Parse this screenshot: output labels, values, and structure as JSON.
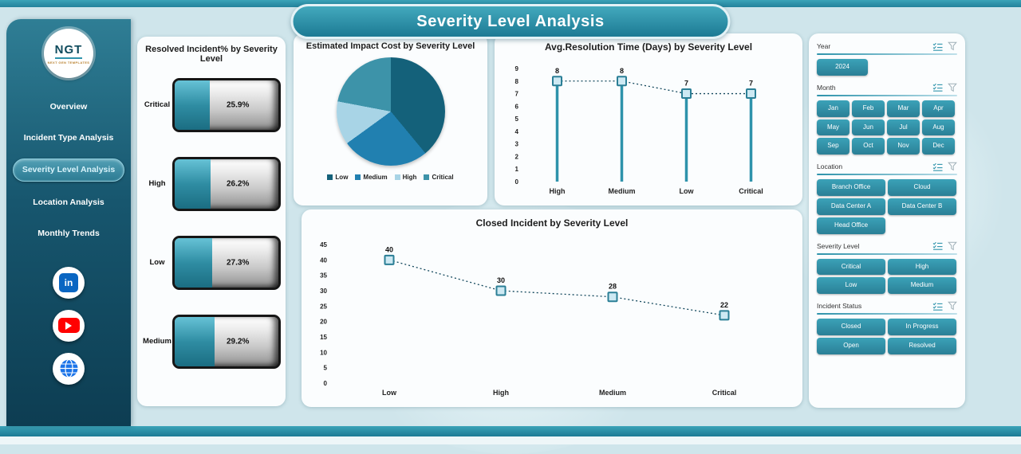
{
  "page": {
    "title": "Severity Level  Analysis"
  },
  "theme": {
    "accent": "#2e93ab",
    "accent_dark": "#1d7a94",
    "sidebar_top": "#2f7e95",
    "sidebar_bottom": "#0d3d52",
    "marker_fill": "#cde9f3",
    "marker_stroke": "#2b7f96",
    "line_color": "#12475c"
  },
  "sidebar": {
    "logo": {
      "abbr": "NGT",
      "subtitle": "NEXT GEN TEMPLATES"
    },
    "items": [
      {
        "label": "Overview",
        "active": false
      },
      {
        "label": "Incident Type Analysis",
        "active": false
      },
      {
        "label": "Severity Level  Analysis",
        "active": true
      },
      {
        "label": "Location Analysis",
        "active": false
      },
      {
        "label": "Monthly Trends",
        "active": false
      }
    ],
    "social": [
      {
        "name": "linkedin",
        "glyph": "in"
      },
      {
        "name": "youtube"
      },
      {
        "name": "website"
      }
    ]
  },
  "chart_data": [
    {
      "id": "resolved-incident-pct",
      "type": "bar",
      "title": "Resolved Incident% by Severity Level",
      "categories": [
        "Critical",
        "High",
        "Low",
        "Medium"
      ],
      "values": [
        25.9,
        26.2,
        27.3,
        29.2
      ],
      "labels": [
        "25.9%",
        "26.2%",
        "27.3%",
        "29.2%"
      ],
      "unit": "%"
    },
    {
      "id": "impact-cost",
      "type": "pie",
      "title": "Estimated Impact Cost by Severity Level",
      "legend": [
        "Low",
        "Medium",
        "High",
        "Critical"
      ],
      "values_pct_estimated": [
        39,
        26,
        13,
        22
      ],
      "colors": [
        "#14617a",
        "#2180b0",
        "#a8d4e6",
        "#3d93a9"
      ],
      "legend_position": "bottom"
    },
    {
      "id": "avg-resolution-time",
      "type": "line",
      "variant": "lollipop",
      "title": "Avg.Resolution Time (Days) by Severity Level",
      "categories": [
        "High",
        "Medium",
        "Low",
        "Critical"
      ],
      "values": [
        8,
        8,
        7,
        7
      ],
      "ylim": [
        0,
        9
      ],
      "ytick_step": 1,
      "grid": false
    },
    {
      "id": "closed-incidents",
      "type": "line",
      "title": "Closed Incident by Severity Level",
      "categories": [
        "Low",
        "High",
        "Medium",
        "Critical"
      ],
      "values": [
        40,
        30,
        28,
        22
      ],
      "ylim": [
        0,
        45
      ],
      "ytick_step": 5,
      "grid": false
    }
  ],
  "filters": [
    {
      "label": "Year",
      "per_row": 3,
      "options": [
        "2024"
      ]
    },
    {
      "label": "Month",
      "per_row": 4,
      "options": [
        "Jan",
        "Feb",
        "Mar",
        "Apr",
        "May",
        "Jun",
        "Jul",
        "Aug",
        "Sep",
        "Oct",
        "Nov",
        "Dec"
      ]
    },
    {
      "label": "Location",
      "per_row": 2,
      "options": [
        "Branch Office",
        "Cloud",
        "Data Center A",
        "Data Center B",
        "Head Office"
      ]
    },
    {
      "label": "Severity Level",
      "per_row": 2,
      "options": [
        "Critical",
        "High",
        "Low",
        "Medium"
      ]
    },
    {
      "label": "Incident Status",
      "per_row": 2,
      "options": [
        "Closed",
        "In Progress",
        "Open",
        "Resolved"
      ]
    }
  ]
}
